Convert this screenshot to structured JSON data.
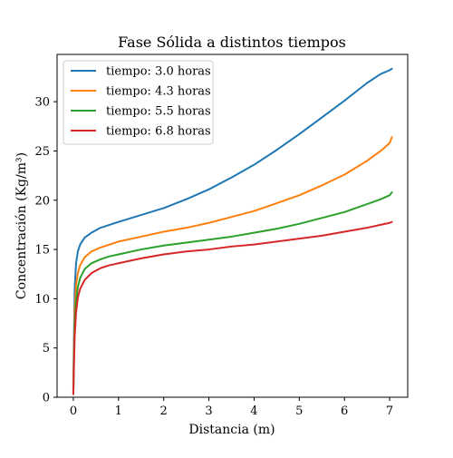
{
  "chart_data": {
    "type": "line",
    "title": "Fase Sólida a distintos tiempos",
    "xlabel": "Distancia (m)",
    "ylabel": "Concentración (Kg/m³)",
    "xlim": [
      -0.36,
      7.4
    ],
    "ylim": [
      0,
      34.8
    ],
    "xticks": [
      "0",
      "1",
      "2",
      "3",
      "4",
      "5",
      "6",
      "7"
    ],
    "yticks": [
      "0",
      "5",
      "10",
      "15",
      "20",
      "25",
      "30"
    ],
    "grid": false,
    "legend_position": "top-left",
    "series": [
      {
        "name": "tiempo: 3.0 horas",
        "color": "#1f77b4",
        "x": [
          0,
          0.01,
          0.03,
          0.06,
          0.1,
          0.15,
          0.25,
          0.4,
          0.6,
          0.8,
          1.0,
          1.5,
          2.0,
          2.5,
          3.0,
          3.5,
          4.0,
          4.5,
          5.0,
          5.5,
          6.0,
          6.5,
          6.8,
          7.0,
          7.05
        ],
        "y": [
          0.5,
          5.0,
          11.0,
          13.6,
          14.8,
          15.5,
          16.2,
          16.7,
          17.2,
          17.5,
          17.8,
          18.5,
          19.2,
          20.1,
          21.1,
          22.3,
          23.6,
          25.1,
          26.7,
          28.4,
          30.1,
          31.9,
          32.8,
          33.2,
          33.35
        ]
      },
      {
        "name": "tiempo: 4.3 horas",
        "color": "#ff7f0e",
        "x": [
          0,
          0.01,
          0.03,
          0.06,
          0.1,
          0.15,
          0.25,
          0.4,
          0.6,
          0.8,
          1.0,
          1.5,
          2.0,
          2.5,
          3.0,
          3.5,
          4.0,
          4.5,
          5.0,
          5.5,
          6.0,
          6.5,
          6.8,
          7.0,
          7.05
        ],
        "y": [
          0.4,
          3.8,
          8.8,
          11.4,
          12.6,
          13.4,
          14.2,
          14.8,
          15.2,
          15.5,
          15.8,
          16.3,
          16.8,
          17.2,
          17.7,
          18.3,
          18.9,
          19.7,
          20.5,
          21.5,
          22.6,
          24.0,
          25.0,
          25.8,
          26.4
        ]
      },
      {
        "name": "tiempo: 5.5 horas",
        "color": "#2ca02c",
        "x": [
          0,
          0.01,
          0.03,
          0.06,
          0.1,
          0.15,
          0.25,
          0.4,
          0.6,
          0.8,
          1.0,
          1.5,
          2.0,
          2.5,
          3.0,
          3.5,
          4.0,
          4.5,
          5.0,
          5.5,
          6.0,
          6.5,
          6.8,
          7.0,
          7.05
        ],
        "y": [
          0.35,
          3.0,
          7.4,
          9.8,
          11.2,
          12.1,
          13.0,
          13.6,
          14.0,
          14.3,
          14.5,
          15.0,
          15.4,
          15.7,
          16.0,
          16.3,
          16.7,
          17.1,
          17.6,
          18.2,
          18.8,
          19.6,
          20.1,
          20.5,
          20.8
        ]
      },
      {
        "name": "tiempo: 6.8 horas",
        "color": "#d62728",
        "x": [
          0,
          0.01,
          0.03,
          0.06,
          0.1,
          0.15,
          0.25,
          0.4,
          0.6,
          0.8,
          1.0,
          1.5,
          2.0,
          2.5,
          3.0,
          3.5,
          4.0,
          4.5,
          5.0,
          5.5,
          6.0,
          6.5,
          6.8,
          7.0,
          7.05
        ],
        "y": [
          0.3,
          2.5,
          6.2,
          8.6,
          10.1,
          11.0,
          11.9,
          12.6,
          13.1,
          13.4,
          13.6,
          14.1,
          14.5,
          14.8,
          15.0,
          15.3,
          15.5,
          15.8,
          16.1,
          16.4,
          16.8,
          17.2,
          17.5,
          17.7,
          17.8
        ]
      }
    ]
  }
}
